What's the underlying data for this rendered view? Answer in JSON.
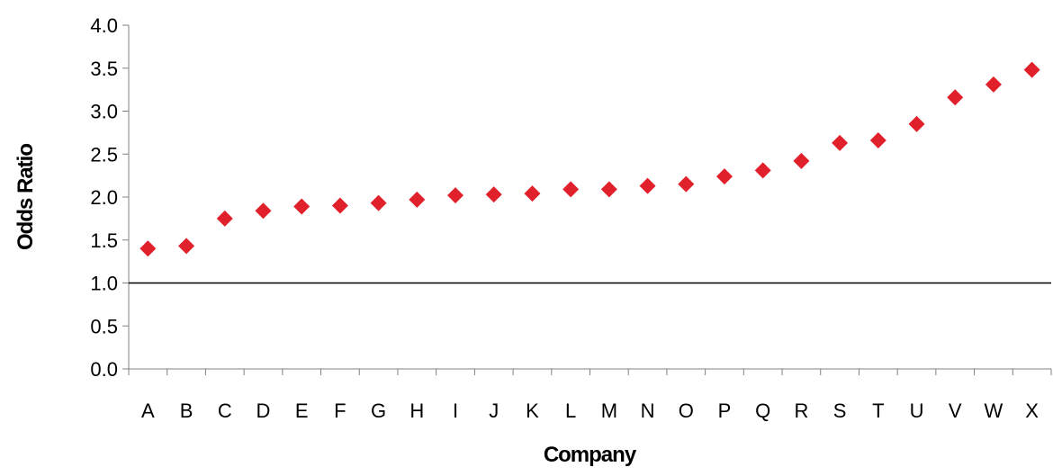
{
  "chart_data": {
    "type": "scatter",
    "title": "",
    "xlabel": "Company",
    "ylabel": "Odds Ratio",
    "categories": [
      "A",
      "B",
      "C",
      "D",
      "E",
      "F",
      "G",
      "H",
      "I",
      "J",
      "K",
      "L",
      "M",
      "N",
      "O",
      "P",
      "Q",
      "R",
      "S",
      "T",
      "U",
      "V",
      "W",
      "X"
    ],
    "values": [
      1.4,
      1.43,
      1.75,
      1.84,
      1.89,
      1.9,
      1.93,
      1.97,
      2.02,
      2.03,
      2.04,
      2.09,
      2.09,
      2.13,
      2.15,
      2.24,
      2.31,
      2.42,
      2.63,
      2.66,
      2.85,
      3.16,
      3.31,
      3.48
    ],
    "ylim": [
      0,
      4.0
    ],
    "yticks": [
      "0.0",
      "0.5",
      "1.0",
      "1.5",
      "2.0",
      "2.5",
      "3.0",
      "3.5",
      "4.0"
    ],
    "reference_line": 1.0,
    "grid": false,
    "marker": "diamond",
    "marker_color": "#E0202B",
    "line_color": "#000000"
  }
}
